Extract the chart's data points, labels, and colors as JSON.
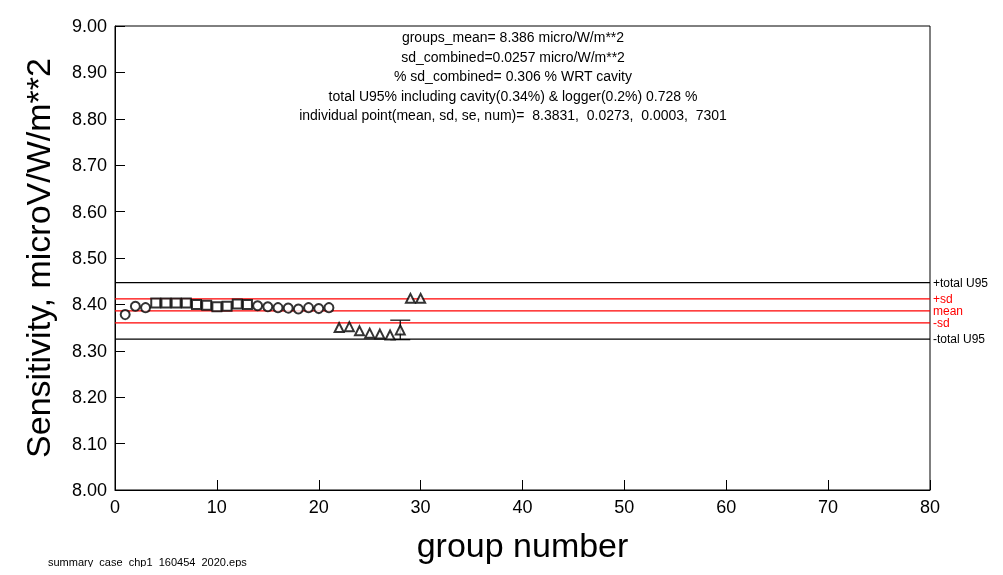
{
  "chart_data": {
    "type": "scatter",
    "xlabel": "group number",
    "ylabel": "Sensitivity, microV/W/m**2",
    "xlim": [
      0,
      80
    ],
    "xticks": [
      0,
      10,
      20,
      30,
      40,
      50,
      60,
      70,
      80
    ],
    "ylim": [
      8,
      9
    ],
    "yticks": [
      {
        "value": 8,
        "label": "8.00"
      },
      {
        "value": 8.1,
        "label": "8.10"
      },
      {
        "value": 8.2,
        "label": "8.20"
      },
      {
        "value": 8.3,
        "label": "8.30"
      },
      {
        "value": 8.4,
        "label": "8.40"
      },
      {
        "value": 8.5,
        "label": "8.50"
      },
      {
        "value": 8.6,
        "label": "8.60"
      },
      {
        "value": 8.7,
        "label": "8.70"
      },
      {
        "value": 8.8,
        "label": "8.80"
      },
      {
        "value": 8.9,
        "label": "8.90"
      },
      {
        "value": 9,
        "label": "9.00"
      }
    ],
    "grid": false,
    "series": [
      {
        "color": "#000000",
        "marker": "circle",
        "x": [
          1,
          2,
          3
        ],
        "values": [
          8.378,
          8.396,
          8.393
        ]
      },
      {
        "color": "#000000",
        "marker": "square",
        "x": [
          4,
          5,
          6,
          7,
          8,
          9,
          10,
          11,
          12,
          13
        ],
        "values": [
          8.403,
          8.403,
          8.403,
          8.403,
          8.4,
          8.398,
          8.395,
          8.396,
          8.401,
          8.4
        ]
      },
      {
        "color": "#000000",
        "marker": "circle",
        "x": [
          14,
          15,
          16,
          17,
          18,
          19,
          20,
          21
        ],
        "values": [
          8.397,
          8.395,
          8.393,
          8.392,
          8.39,
          8.393,
          8.391,
          8.393
        ]
      },
      {
        "color": "#000000",
        "marker": "triangle",
        "x": [
          22,
          23,
          24,
          25,
          26,
          27,
          28,
          29,
          30
        ],
        "values": [
          8.35,
          8.352,
          8.343,
          8.338,
          8.336,
          8.334,
          8.345,
          8.413,
          8.413
        ],
        "errors": [
          null,
          null,
          null,
          null,
          null,
          null,
          0.021,
          null,
          null
        ]
      }
    ],
    "ref_lines": [
      {
        "axis": "y",
        "value": 8.447,
        "label": "+total U95",
        "color": "#000000"
      },
      {
        "axis": "y",
        "value": 8.412,
        "label": "+sd",
        "color": "#ff0000"
      },
      {
        "axis": "y",
        "value": 8.386,
        "label": "mean",
        "color": "#ff0000"
      },
      {
        "axis": "y",
        "value": 8.36,
        "label": "-sd",
        "color": "#ff0000"
      },
      {
        "axis": "y",
        "value": 8.325,
        "label": "-total U95",
        "color": "#000000"
      }
    ],
    "annotations": [
      "groups_mean= 8.386 micro/W/m**2",
      "sd_combined=0.0257 micro/W/m**2",
      "% sd_combined= 0.306 % WRT cavity",
      "total U95% including cavity(0.34%) & logger(0.2%) 0.728 %",
      "individual point(mean, sd, se, num)=  8.3831,  0.0273,  0.0003,  7301",
      "summary_case_chp1_160454_2020.eps"
    ]
  }
}
